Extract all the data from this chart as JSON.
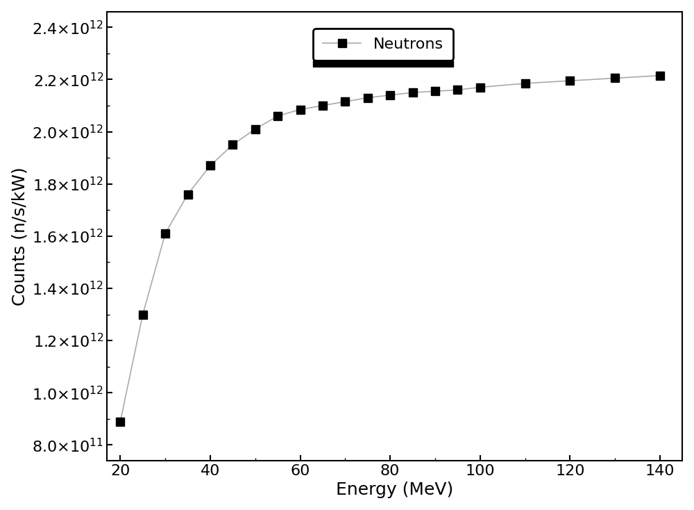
{
  "x": [
    20,
    25,
    30,
    35,
    40,
    45,
    50,
    55,
    60,
    65,
    70,
    75,
    80,
    85,
    90,
    95,
    100,
    110,
    120,
    130,
    140
  ],
  "y": [
    890000000000.0,
    1300000000000.0,
    1610000000000.0,
    1760000000000.0,
    1870000000000.0,
    1950000000000.0,
    2010000000000.0,
    2060000000000.0,
    2085000000000.0,
    2100000000000.0,
    2115000000000.0,
    2130000000000.0,
    2140000000000.0,
    2150000000000.0,
    2155000000000.0,
    2160000000000.0,
    2170000000000.0,
    2185000000000.0,
    2195000000000.0,
    2205000000000.0,
    2215000000000.0
  ],
  "xlabel": "Energy (MeV)",
  "ylabel": "Counts (n/s/kW)",
  "legend_label": "Neutrons",
  "line_color": "#aaaaaa",
  "marker_color": "#000000",
  "marker": "s",
  "marker_size": 8,
  "line_width": 1.2,
  "xlim": [
    17,
    145
  ],
  "ylim": [
    740000000000.0,
    2460000000000.0
  ],
  "xticks": [
    20,
    40,
    60,
    80,
    100,
    120,
    140
  ],
  "ytick_vals": [
    800000000000.0,
    1000000000000.0,
    1200000000000.0,
    1400000000000.0,
    1600000000000.0,
    1800000000000.0,
    2000000000000.0,
    2200000000000.0,
    2400000000000.0
  ],
  "background_color": "#ffffff",
  "label_fontsize": 18,
  "tick_fontsize": 16,
  "legend_fontsize": 16
}
